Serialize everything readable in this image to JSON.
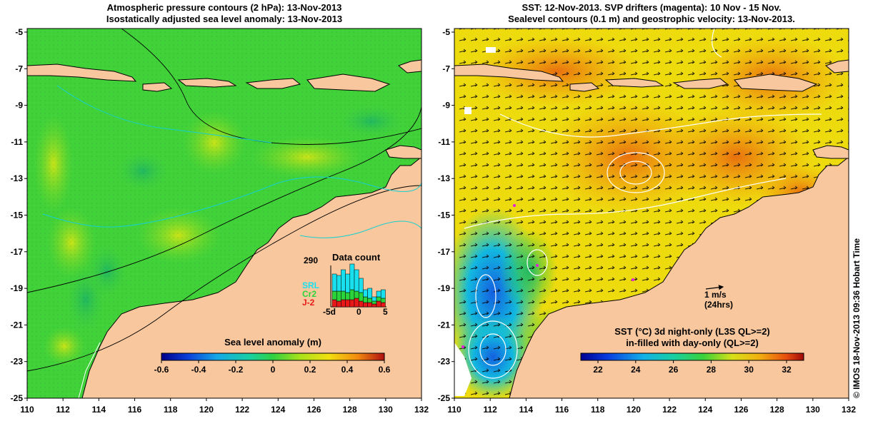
{
  "left_panel": {
    "title_line1": "Atmospheric pressure contours (2 hPa): 13-Nov-2013",
    "title_line2": "Isostatically adjusted sea level anomaly: 13-Nov-2013",
    "y_ticks": [
      "-5",
      "-7",
      "-9",
      "-11",
      "-13",
      "-15",
      "-17",
      "-19",
      "-21",
      "-23",
      "-25"
    ],
    "x_ticks": [
      "110",
      "112",
      "114",
      "116",
      "118",
      "120",
      "122",
      "124",
      "126",
      "128",
      "130",
      "132"
    ],
    "colorbar": {
      "label": "Sea level anomaly (m)",
      "ticks": [
        "-0.6",
        "-0.4",
        "-0.2",
        "0",
        "0.2",
        "0.4",
        "0.6"
      ]
    },
    "data_count": {
      "title": "Data count",
      "max_label": "290",
      "x_ticks": [
        "-5d",
        "0",
        "5"
      ],
      "legend": [
        {
          "label": "SRL",
          "color": "#19e0ee"
        },
        {
          "label": "Cr2",
          "color": "#2ad43a"
        },
        {
          "label": "J-2",
          "color": "#e81818"
        }
      ]
    }
  },
  "right_panel": {
    "title_line1": "SST: 12-Nov-2013. SVP drifters (magenta): 10 Nov - 15 Nov.",
    "title_line2": "Sealevel contours (0.1 m) and geostrophic velocity: 13-Nov-2013.",
    "y_ticks": [
      "-5",
      "-7",
      "-9",
      "-11",
      "-13",
      "-15",
      "-17",
      "-19",
      "-21",
      "-23",
      "-25"
    ],
    "x_ticks": [
      "110",
      "112",
      "114",
      "116",
      "118",
      "120",
      "122",
      "124",
      "126",
      "128",
      "130",
      "132"
    ],
    "velocity_scale": {
      "label": "1 m/s",
      "sublabel": "(24hrs)"
    },
    "colorbar": {
      "label_line1": "SST (°C)  3d night-only (L3S QL>=2)",
      "label_line2": "in-filled with day-only (QL>=2)",
      "ticks": [
        "22",
        "24",
        "26",
        "28",
        "30",
        "32"
      ]
    }
  },
  "credit": "© IMOS 18-Nov-2013 09:36 Hobart Time",
  "colors": {
    "land": "#f8c79d",
    "ocean_green": "#41d23a",
    "ocean_yellowgreen": "#a8e21c",
    "sst_orange": "#f4a20c",
    "sst_yellow": "#eedb0e",
    "sst_cyan": "#12b8e0",
    "coast_contour": "#18d0d0"
  }
}
